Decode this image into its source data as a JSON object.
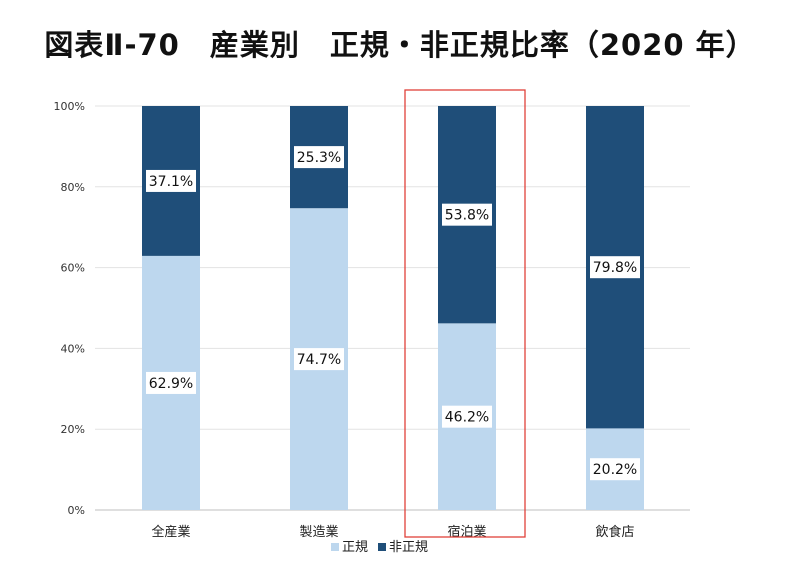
{
  "chart_data": {
    "type": "bar",
    "stacked": true,
    "title": "図表Ⅱ-70　産業別　正規・非正規比率（2020 年）",
    "categories": [
      "全産業",
      "製造業",
      "宿泊業",
      "飲食店"
    ],
    "series": [
      {
        "name": "正規",
        "values": [
          62.9,
          74.7,
          46.2,
          20.2
        ],
        "labels": [
          "62.9%",
          "74.7%",
          "46.2%",
          "20.2%"
        ],
        "color": "#bdd7ee"
      },
      {
        "name": "非正規",
        "values": [
          37.1,
          25.3,
          53.8,
          79.8
        ],
        "labels": [
          "37.1%",
          "25.3%",
          "53.8%",
          "79.8%"
        ],
        "color": "#1f4e79"
      }
    ],
    "y_ticks": [
      0,
      20,
      40,
      60,
      80,
      100
    ],
    "y_tick_labels": [
      "0%",
      "20%",
      "40%",
      "60%",
      "80%",
      "100%"
    ],
    "ylim": [
      0,
      100
    ],
    "xlabel": "",
    "ylabel": "",
    "grid": true,
    "legend_position": "bottom",
    "highlighted_category": "宿泊業",
    "highlight_color": "#e0413a",
    "gridline_color": "#e3e3e3"
  }
}
